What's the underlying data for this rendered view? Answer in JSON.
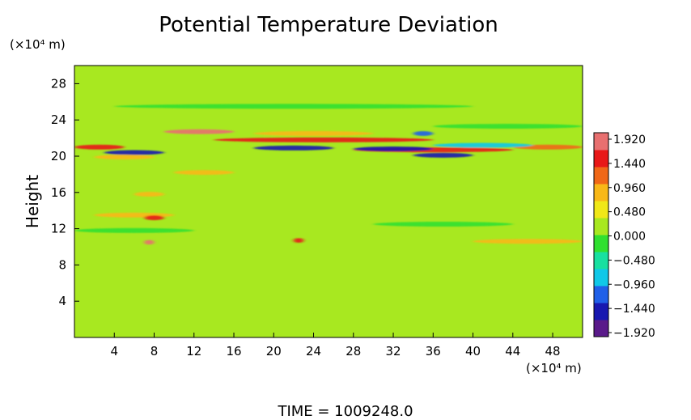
{
  "chart_data": {
    "type": "heatmap",
    "title": "Potential Temperature Deviation",
    "ylabel": "Height",
    "y_unit": "(×10⁴ m)",
    "x_unit": "(×10⁴ m)",
    "xlabel": "",
    "x_ticks": [
      4,
      8,
      12,
      16,
      20,
      24,
      28,
      32,
      36,
      40,
      44,
      48
    ],
    "y_ticks": [
      4,
      8,
      12,
      16,
      20,
      24,
      28
    ],
    "xlim": [
      0,
      51
    ],
    "ylim": [
      0,
      30
    ],
    "colorbar": {
      "labels": [
        "1.920",
        "1.440",
        "0.960",
        "0.480",
        "0.000",
        "−0.480",
        "−0.960",
        "−1.440",
        "−1.920"
      ],
      "range": [
        -1.92,
        1.92
      ],
      "colors": [
        "#5a1a8a",
        "#1818b0",
        "#2060e8",
        "#10c8e8",
        "#18e0a0",
        "#30e030",
        "#a8e820",
        "#f0e818",
        "#f8b818",
        "#f06818",
        "#e81818",
        "#e87070"
      ]
    },
    "background_value": 0.1,
    "features": [
      {
        "x": [
          9,
          16
        ],
        "y": 22.7,
        "value": 1.6
      },
      {
        "x": [
          14,
          36
        ],
        "y": 21.8,
        "value": 1.5
      },
      {
        "x": [
          28,
          44
        ],
        "y": 20.7,
        "value": 1.3
      },
      {
        "x": [
          18,
          30
        ],
        "y": 22.5,
        "value": 0.7
      },
      {
        "x": [
          0,
          5
        ],
        "y": 21.0,
        "value": 1.3
      },
      {
        "x": [
          44,
          51
        ],
        "y": 21.0,
        "value": 1.2
      },
      {
        "x": [
          3,
          9
        ],
        "y": 20.4,
        "value": -1.5
      },
      {
        "x": [
          18,
          26
        ],
        "y": 20.9,
        "value": -1.5
      },
      {
        "x": [
          28,
          36
        ],
        "y": 20.8,
        "value": -1.4
      },
      {
        "x": [
          34,
          40
        ],
        "y": 20.1,
        "value": -1.4
      },
      {
        "x": [
          34,
          36
        ],
        "y": 22.5,
        "value": -1.2
      },
      {
        "x": [
          36,
          46
        ],
        "y": 21.2,
        "value": -0.8
      },
      {
        "x": [
          2,
          8
        ],
        "y": 19.9,
        "value": 0.9
      },
      {
        "x": [
          10,
          16
        ],
        "y": 18.2,
        "value": 0.8
      },
      {
        "x": [
          2,
          10
        ],
        "y": 13.5,
        "value": 0.9
      },
      {
        "x": [
          7,
          9
        ],
        "y": 13.2,
        "value": 1.4
      },
      {
        "x": [
          6,
          9
        ],
        "y": 15.8,
        "value": 0.8
      },
      {
        "x": [
          7,
          8
        ],
        "y": 10.5,
        "value": 1.6
      },
      {
        "x": [
          22,
          23
        ],
        "y": 10.7,
        "value": 1.5
      },
      {
        "x": [
          40,
          51
        ],
        "y": 10.6,
        "value": 0.8
      },
      {
        "x": [
          0,
          12
        ],
        "y": 11.8,
        "value": -0.3
      },
      {
        "x": [
          30,
          44
        ],
        "y": 12.5,
        "value": -0.3
      },
      {
        "x": [
          4,
          40
        ],
        "y": 25.5,
        "value": -0.2
      },
      {
        "x": [
          36,
          51
        ],
        "y": 23.3,
        "value": -0.2
      }
    ]
  },
  "footer": {
    "time_label": "TIME  =  1009248.0"
  }
}
